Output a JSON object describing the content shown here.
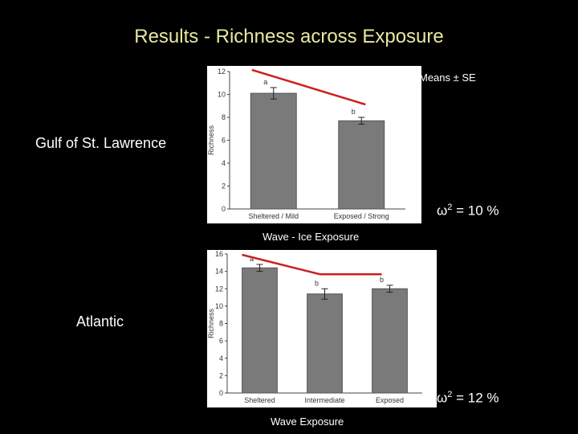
{
  "title": "Results  -  Richness across Exposure",
  "means_label": "Means ± SE",
  "chart_data": [
    {
      "type": "bar",
      "region_label": "Gulf of St. Lawrence",
      "categories": [
        "Sheltered / Mild",
        "Exposed / Strong"
      ],
      "values": [
        10.1,
        7.7
      ],
      "errors": [
        0.5,
        0.3
      ],
      "group_letters": [
        "a",
        "b"
      ],
      "ylabel": "Richness",
      "ylim": [
        0,
        12
      ],
      "yticks": [
        0,
        2,
        4,
        6,
        8,
        10,
        12
      ],
      "xlabel": "Wave - Ice Exposure",
      "omega_symbol": "ω",
      "omega_sup": "2",
      "omega_text": " = 10 %",
      "bar_color": "#7a7a7a",
      "trend_color": "#cc1f1f"
    },
    {
      "type": "bar",
      "region_label": "Atlantic",
      "categories": [
        "Sheltered",
        "Intermediate",
        "Exposed"
      ],
      "values": [
        14.4,
        11.4,
        12.0
      ],
      "errors": [
        0.4,
        0.6,
        0.4
      ],
      "group_letters": [
        "a",
        "b",
        "b"
      ],
      "ylabel": "Richness",
      "ylim": [
        0,
        16
      ],
      "yticks": [
        0,
        2,
        4,
        6,
        8,
        10,
        12,
        14,
        16
      ],
      "xlabel": "Wave Exposure",
      "omega_symbol": "ω",
      "omega_sup": "2",
      "omega_text": " = 12 %",
      "bar_color": "#7a7a7a",
      "trend_color": "#cc1f1f"
    }
  ]
}
